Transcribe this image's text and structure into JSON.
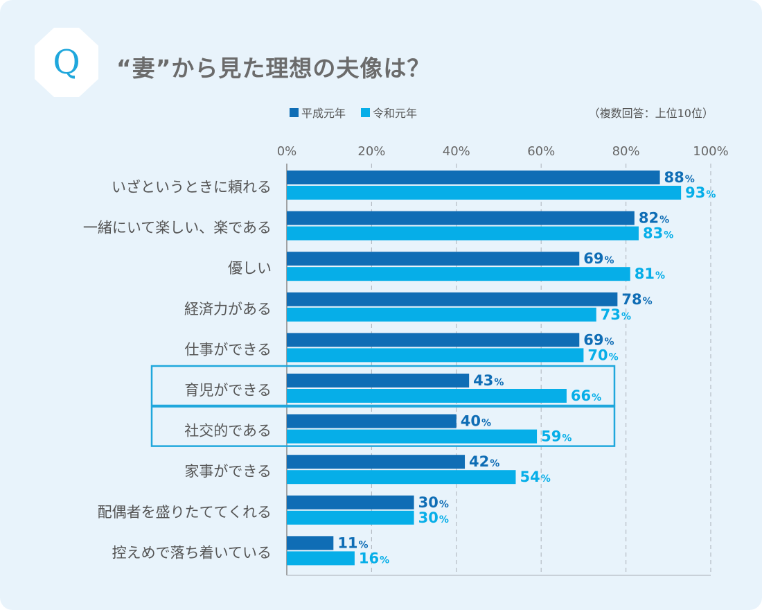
{
  "header": {
    "q_label": "Q",
    "title": "“妻”から見た理想の夫像は？"
  },
  "chart_data": {
    "type": "bar",
    "orientation": "horizontal",
    "title": "“妻”から見た理想の夫像は？",
    "note": "（複数回答：上位10位）",
    "categories": [
      "いざというときに頼れる",
      "一緒にいて楽しい、楽である",
      "優しい",
      "経済力がある",
      "仕事ができる",
      "育児ができる",
      "社交的である",
      "家事ができる",
      "配偶者を盛りたててくれる",
      "控えめで落ち着いている"
    ],
    "series": [
      {
        "name": "平成元年",
        "color": "#0f6db5",
        "values": [
          88,
          82,
          69,
          78,
          69,
          43,
          40,
          42,
          30,
          11
        ]
      },
      {
        "name": "令和元年",
        "color": "#06aee8",
        "values": [
          93,
          83,
          81,
          73,
          70,
          66,
          59,
          54,
          30,
          16
        ]
      }
    ],
    "value_suffix": "%",
    "xlim": [
      0,
      100
    ],
    "ticks": [
      0,
      20,
      40,
      60,
      80,
      100
    ],
    "tick_labels": [
      "0%",
      "20%",
      "40%",
      "60%",
      "80%",
      "100%"
    ],
    "grid": true,
    "legend_position": "top-left",
    "highlighted_categories": [
      "育児ができる",
      "社交的である"
    ],
    "highlight_color": "#1fa7dc"
  }
}
